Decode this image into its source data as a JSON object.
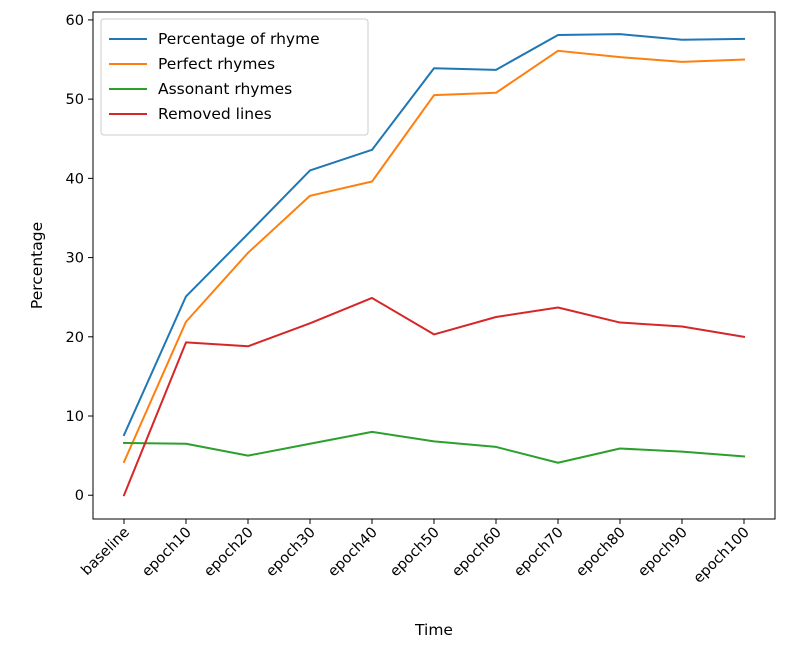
{
  "chart_data": {
    "type": "line",
    "title": "",
    "xlabel": "Time",
    "ylabel": "Percentage",
    "categories": [
      "baseline",
      "epoch10",
      "epoch20",
      "epoch30",
      "epoch40",
      "epoch50",
      "epoch60",
      "epoch70",
      "epoch80",
      "epoch90",
      "epoch100"
    ],
    "ylim": [
      -3,
      61
    ],
    "yticks": [
      0,
      10,
      20,
      30,
      40,
      50,
      60
    ],
    "grid": false,
    "legend_position": "top-left",
    "series": [
      {
        "name": "Percentage of rhyme",
        "color": "#1f77b4",
        "values": [
          7.6,
          25.1,
          33.0,
          41.0,
          43.6,
          53.9,
          53.7,
          58.1,
          58.2,
          57.5,
          57.6
        ]
      },
      {
        "name": "Perfect rhymes",
        "color": "#ff7f0e",
        "values": [
          4.2,
          21.9,
          30.6,
          37.8,
          39.6,
          50.5,
          50.8,
          56.1,
          55.3,
          54.7,
          55.0
        ]
      },
      {
        "name": "Assonant rhymes",
        "color": "#2ca02c",
        "values": [
          6.6,
          6.5,
          5.0,
          6.5,
          8.0,
          6.8,
          6.1,
          4.1,
          5.9,
          5.5,
          4.9
        ]
      },
      {
        "name": "Removed lines",
        "color": "#d62728",
        "values": [
          0.0,
          19.3,
          18.8,
          21.7,
          24.9,
          20.3,
          22.5,
          23.7,
          21.8,
          21.3,
          20.0
        ]
      }
    ]
  }
}
